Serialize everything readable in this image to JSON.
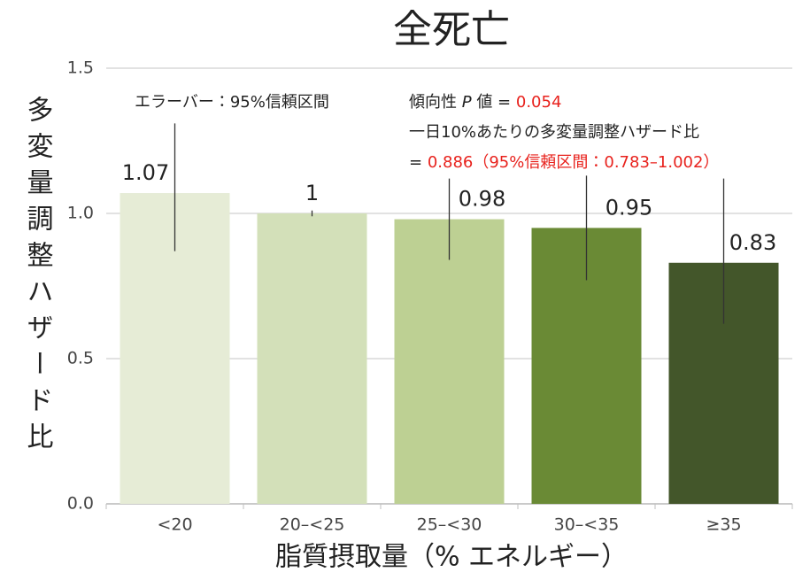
{
  "chart_data": {
    "type": "bar",
    "title": "全死亡",
    "y_label": "多変量調整ハザード比",
    "x_label": "脂質摂取量（% エネルギー）",
    "categories": [
      "<20",
      "20–<25",
      "25–<30",
      "30–<35",
      "≥35"
    ],
    "values": [
      1.07,
      1,
      0.98,
      0.95,
      0.83
    ],
    "ci_lower": [
      0.87,
      0.99,
      0.84,
      0.77,
      0.62
    ],
    "ci_upper": [
      1.31,
      1.01,
      1.12,
      1.13,
      1.12
    ],
    "colors": [
      "#e6ecd6",
      "#d3e0b9",
      "#bdd093",
      "#6a8a35",
      "#43562a"
    ],
    "ylim": [
      0,
      1.5
    ],
    "yticks": [
      {
        "value": 0,
        "label": "0.0"
      },
      {
        "value": 0.5,
        "label": "0.5"
      },
      {
        "value": 1,
        "label": "1.0"
      },
      {
        "value": 1.5,
        "label": "1.5"
      }
    ],
    "grid": true,
    "annotations": {
      "error_bar_note": "エラーバー：95%信頼区間",
      "trend_prefix": "傾向性",
      "trend_p": "P",
      "trend_eq": "値 =",
      "trend_value": "0.054",
      "hazard_line": "一日10%あたりの多変量調整ハザード比",
      "hazard_eq": "=",
      "hazard_value": "0.886（95%信頼区間：0.783–1.002）"
    }
  }
}
